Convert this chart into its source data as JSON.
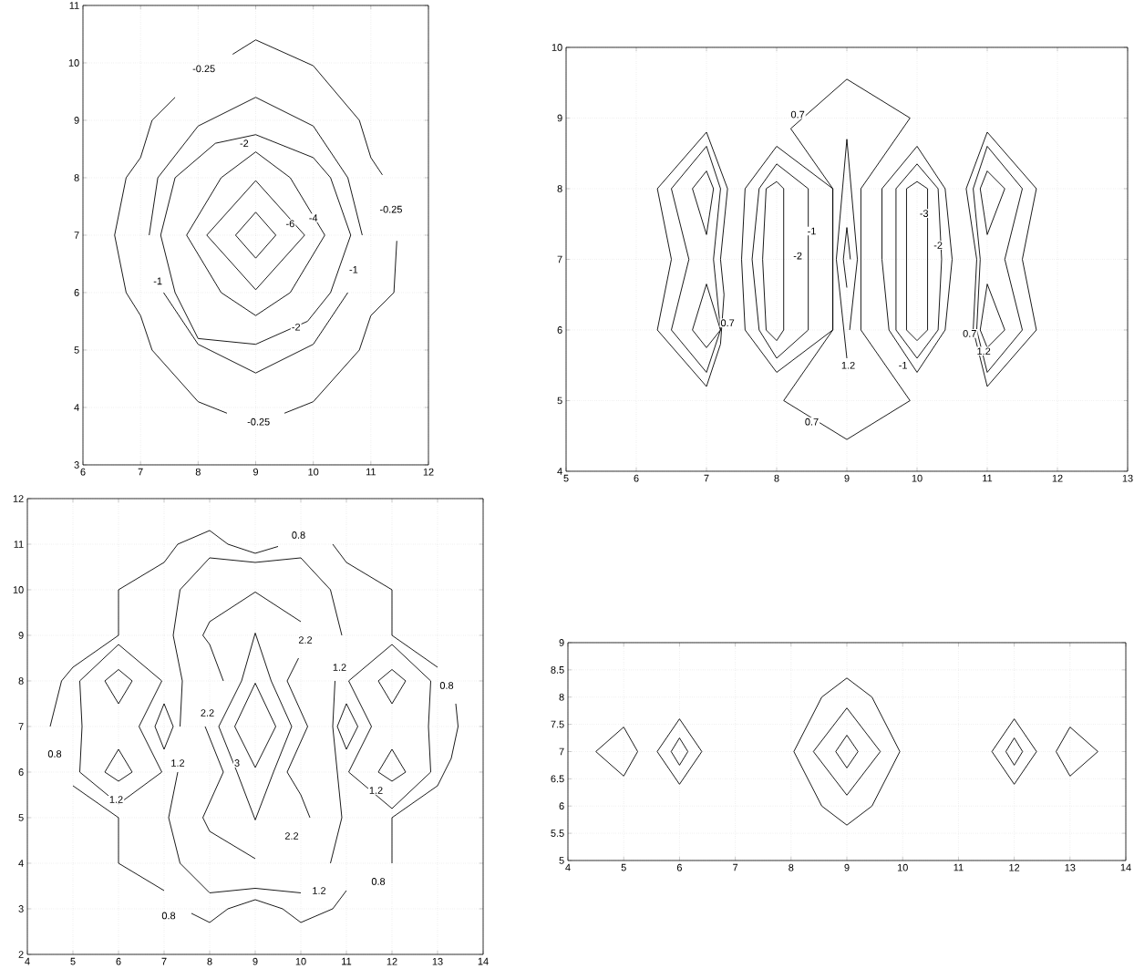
{
  "chart_data": [
    {
      "type": "line",
      "xlim": [
        6,
        12
      ],
      "ylim": [
        3,
        11
      ],
      "xticks": [
        6,
        7,
        8,
        9,
        10,
        11,
        12
      ],
      "yticks": [
        3,
        4,
        5,
        6,
        7,
        8,
        9,
        10,
        11
      ],
      "grid": true,
      "marker": "none",
      "line_style": "solid",
      "series": [
        {
          "color": "#000000",
          "x": [
            8.6,
            9,
            10,
            10.8,
            11,
            11.2
          ],
          "values": [
            10.15,
            10.4,
            9.95,
            9,
            8.35,
            8.05
          ]
        },
        {
          "color": "#000000",
          "x": [
            11.45,
            11.4,
            11,
            10.8,
            10,
            9.5
          ],
          "values": [
            6.9,
            6,
            5.6,
            5,
            4.1,
            3.9
          ]
        },
        {
          "color": "#000000",
          "x": [
            8.5,
            8,
            7.2,
            7,
            6.75,
            6.55,
            6.75,
            7,
            7.2,
            7.6
          ],
          "values": [
            3.9,
            4.1,
            5,
            5.6,
            6,
            7,
            8,
            8.35,
            9,
            9.4
          ]
        },
        {
          "color": "#000000",
          "x": [
            10.85,
            10.6,
            10,
            9,
            8,
            7.3,
            7.15
          ],
          "values": [
            7,
            8,
            8.9,
            9.4,
            8.9,
            8,
            7
          ]
        },
        {
          "color": "#000000",
          "x": [
            7.4,
            8,
            9,
            10,
            10.6
          ],
          "values": [
            6,
            5.1,
            4.6,
            5.1,
            6
          ]
        },
        {
          "color": "#000000",
          "x": [
            7.35,
            7.6,
            8.3,
            9,
            10,
            10.3,
            10.65
          ],
          "values": [
            7,
            8,
            8.6,
            8.75,
            8.35,
            8,
            7
          ]
        },
        {
          "color": "#000000",
          "x": [
            7.35,
            7.6,
            8,
            9,
            9.9,
            10.3,
            10.65
          ],
          "values": [
            7,
            6,
            5.2,
            5.1,
            5.5,
            6,
            7
          ]
        },
        {
          "color": "#000000",
          "x": [
            7.8,
            8.4,
            9,
            9.6,
            10.2
          ],
          "values": [
            7,
            8,
            8.45,
            8,
            7
          ]
        },
        {
          "color": "#000000",
          "x": [
            7.8,
            8.4,
            9,
            9.6,
            10.2
          ],
          "values": [
            7,
            6,
            5.6,
            6,
            7
          ]
        },
        {
          "color": "#000000",
          "x": [
            8.15,
            9,
            9.85
          ],
          "values": [
            7,
            7.95,
            7
          ]
        },
        {
          "color": "#000000",
          "x": [
            8.15,
            9,
            9.85
          ],
          "values": [
            7,
            6.05,
            7
          ]
        },
        {
          "color": "#000000",
          "x": [
            8.65,
            9,
            9.35
          ],
          "values": [
            7,
            7.4,
            7
          ]
        },
        {
          "color": "#000000",
          "x": [
            8.65,
            9,
            9.35
          ],
          "values": [
            7,
            6.6,
            7
          ]
        }
      ],
      "annotations": [
        {
          "text": "-0.25",
          "x": 8.1,
          "y": 9.9
        },
        {
          "text": "-0.25",
          "x": 11.35,
          "y": 7.45
        },
        {
          "text": "-0.25",
          "x": 9.05,
          "y": 3.75
        },
        {
          "text": "-1",
          "x": 7.3,
          "y": 6.2
        },
        {
          "text": "-1",
          "x": 10.7,
          "y": 6.4
        },
        {
          "text": "-2",
          "x": 8.8,
          "y": 8.6
        },
        {
          "text": "-2",
          "x": 9.7,
          "y": 5.4
        },
        {
          "text": "-6",
          "x": 9.6,
          "y": 7.2
        },
        {
          "text": "-4",
          "x": 10,
          "y": 7.3
        }
      ]
    },
    {
      "type": "line",
      "xlim": [
        5,
        13
      ],
      "ylim": [
        4,
        10
      ],
      "xticks": [
        5,
        6,
        7,
        8,
        9,
        10,
        11,
        12,
        13
      ],
      "yticks": [
        4,
        5,
        6,
        7,
        8,
        9,
        10
      ],
      "grid": true,
      "marker": "none",
      "line_style": "solid",
      "series": [
        {
          "color": "#000000",
          "x": [
            9,
            8.2,
            8.8,
            8.8,
            8.1,
            9
          ],
          "values": [
            9.55,
            8.85,
            8,
            6,
            5,
            4.45
          ]
        },
        {
          "color": "#000000",
          "x": [
            9,
            9.9,
            9.2,
            9.2,
            9.9,
            9
          ],
          "values": [
            9.55,
            9,
            8,
            6,
            5,
            4.45
          ]
        },
        {
          "color": "#000000",
          "x": [
            9.04,
            9.15,
            9,
            8.85,
            9
          ],
          "values": [
            6,
            7,
            8.7,
            7,
            5.6
          ]
        },
        {
          "color": "#000000",
          "x": [
            9.05,
            9,
            8.95,
            9
          ],
          "values": [
            7,
            7.45,
            7,
            6.6
          ]
        },
        {
          "color": "#000000",
          "x": [
            7,
            6.3,
            6.5,
            6.3,
            7
          ],
          "values": [
            8.8,
            8,
            7,
            6,
            5.2
          ]
        },
        {
          "color": "#000000",
          "x": [
            7,
            7.3,
            7.2,
            7.25,
            7.2,
            7
          ],
          "values": [
            8.8,
            8,
            7,
            6.5,
            5.8,
            5.2
          ]
        },
        {
          "color": "#000000",
          "x": [
            7,
            6.5,
            6.75,
            6.5,
            7
          ],
          "values": [
            8.6,
            8,
            7,
            6,
            5.4
          ]
        },
        {
          "color": "#000000",
          "x": [
            7,
            7.2,
            7.1,
            7.2,
            7
          ],
          "values": [
            8.6,
            8,
            7,
            6,
            5.4
          ]
        },
        {
          "color": "#000000",
          "x": [
            6.8,
            7,
            7.1
          ],
          "values": [
            8,
            8.25,
            8
          ]
        },
        {
          "color": "#000000",
          "x": [
            6.8,
            7,
            7.1
          ],
          "values": [
            8,
            7.35,
            8
          ]
        },
        {
          "color": "#000000",
          "x": [
            6.8,
            7,
            7.2
          ],
          "values": [
            6,
            6.65,
            6
          ]
        },
        {
          "color": "#000000",
          "x": [
            6.8,
            7,
            7.2
          ],
          "values": [
            6,
            5.75,
            6
          ]
        },
        {
          "color": "#000000",
          "x": [
            11,
            10.7,
            10.85,
            10.8,
            11
          ],
          "values": [
            8.8,
            8,
            7,
            6,
            5.2
          ]
        },
        {
          "color": "#000000",
          "x": [
            11,
            11.7,
            11.5,
            11.7,
            11
          ],
          "values": [
            8.8,
            8,
            7,
            6,
            5.2
          ]
        },
        {
          "color": "#000000",
          "x": [
            11,
            10.8,
            10.9,
            10.85,
            11
          ],
          "values": [
            8.6,
            8,
            7,
            6,
            5.4
          ]
        },
        {
          "color": "#000000",
          "x": [
            11,
            11.5,
            11.25,
            11.5,
            11
          ],
          "values": [
            8.6,
            8,
            7,
            6,
            5.4
          ]
        },
        {
          "color": "#000000",
          "x": [
            10.9,
            11,
            11.25
          ],
          "values": [
            8,
            8.25,
            8
          ]
        },
        {
          "color": "#000000",
          "x": [
            10.9,
            11,
            11.25
          ],
          "values": [
            8,
            7.35,
            8
          ]
        },
        {
          "color": "#000000",
          "x": [
            10.9,
            11,
            11.25
          ],
          "values": [
            6,
            6.65,
            6
          ]
        },
        {
          "color": "#000000",
          "x": [
            10.9,
            11,
            11.25
          ],
          "values": [
            6,
            5.75,
            6
          ]
        },
        {
          "color": "#000000",
          "x": [
            8,
            7.55,
            7.5,
            7.55,
            8
          ],
          "values": [
            8.6,
            8,
            7,
            6,
            5.4
          ]
        },
        {
          "color": "#000000",
          "x": [
            8,
            8.8,
            8.8,
            8
          ],
          "values": [
            8.6,
            8,
            6,
            5.4
          ]
        },
        {
          "color": "#000000",
          "x": [
            8,
            7.75,
            7.65,
            7.75,
            8
          ],
          "values": [
            8.35,
            8,
            7,
            6,
            5.6
          ]
        },
        {
          "color": "#000000",
          "x": [
            8,
            8.45,
            8.45,
            8
          ],
          "values": [
            8.35,
            8,
            6,
            5.6
          ]
        },
        {
          "color": "#000000",
          "x": [
            8,
            7.85,
            7.8,
            7.85,
            8
          ],
          "values": [
            8.1,
            8,
            7,
            6,
            5.85
          ]
        },
        {
          "color": "#000000",
          "x": [
            8,
            8.1,
            8.1,
            8
          ],
          "values": [
            8.1,
            8,
            6,
            5.85
          ]
        },
        {
          "color": "#000000",
          "x": [
            10,
            9.5,
            9.5,
            9.6,
            10
          ],
          "values": [
            8.6,
            8,
            7,
            6,
            5.4
          ]
        },
        {
          "color": "#000000",
          "x": [
            10,
            10.4,
            10.5,
            10.4,
            10
          ],
          "values": [
            8.6,
            8,
            7,
            6,
            5.4
          ]
        },
        {
          "color": "#000000",
          "x": [
            10,
            9.7,
            9.7,
            10
          ],
          "values": [
            8.35,
            8,
            6,
            5.6
          ]
        },
        {
          "color": "#000000",
          "x": [
            10,
            10.3,
            10.35,
            10.3,
            10
          ],
          "values": [
            8.35,
            8,
            7,
            6,
            5.6
          ]
        },
        {
          "color": "#000000",
          "x": [
            10,
            9.85,
            9.85,
            9.85,
            10
          ],
          "values": [
            8.1,
            8,
            7,
            6,
            5.85
          ]
        },
        {
          "color": "#000000",
          "x": [
            10,
            10.15,
            10.15,
            10
          ],
          "values": [
            8.1,
            8,
            6,
            5.85
          ]
        }
      ],
      "annotations": [
        {
          "text": "0.7",
          "x": 8.3,
          "y": 9.05
        },
        {
          "text": "0.7",
          "x": 8.5,
          "y": 4.7
        },
        {
          "text": "0.7",
          "x": 7.3,
          "y": 6.1
        },
        {
          "text": "0.7",
          "x": 10.75,
          "y": 5.95
        },
        {
          "text": "1.2",
          "x": 10.95,
          "y": 5.7
        },
        {
          "text": "1.2",
          "x": 9.02,
          "y": 5.5
        },
        {
          "text": "-1",
          "x": 8.5,
          "y": 7.4
        },
        {
          "text": "-2",
          "x": 8.3,
          "y": 7.05
        },
        {
          "text": "-3",
          "x": 10.1,
          "y": 7.65
        },
        {
          "text": "-2",
          "x": 10.3,
          "y": 7.2
        },
        {
          "text": "-1",
          "x": 9.8,
          "y": 5.5
        }
      ]
    },
    {
      "type": "line",
      "xlim": [
        4,
        14
      ],
      "ylim": [
        2,
        12
      ],
      "xticks": [
        4,
        5,
        6,
        7,
        8,
        9,
        10,
        11,
        12,
        13,
        14
      ],
      "yticks": [
        2,
        3,
        4,
        5,
        6,
        7,
        8,
        9,
        10,
        11,
        12
      ],
      "grid": true,
      "marker": "none",
      "line_style": "solid",
      "series": [
        {
          "color": "#000000",
          "x": [
            4.5,
            4.75,
            5,
            6,
            6,
            7,
            7.3,
            8,
            8.4,
            9,
            9.5
          ],
          "values": [
            7,
            8,
            8.3,
            9,
            10,
            10.6,
            11,
            11.3,
            11,
            10.8,
            10.95
          ]
        },
        {
          "color": "#000000",
          "x": [
            10.7,
            11,
            12,
            12,
            13
          ],
          "values": [
            11,
            10.6,
            10,
            9,
            8.3
          ]
        },
        {
          "color": "#000000",
          "x": [
            13.4,
            13.45,
            13.3,
            13,
            12,
            12
          ],
          "values": [
            7.5,
            7,
            6.3,
            5.7,
            5,
            4
          ]
        },
        {
          "color": "#000000",
          "x": [
            11,
            10.7,
            10,
            9.6,
            9,
            8.4,
            8,
            7.6
          ],
          "values": [
            3.4,
            3,
            2.7,
            3,
            3.2,
            3,
            2.7,
            2.9
          ]
        },
        {
          "color": "#000000",
          "x": [
            7,
            6,
            6,
            5
          ],
          "values": [
            3.4,
            4,
            5,
            5.7
          ]
        },
        {
          "color": "#000000",
          "x": [
            7.35,
            7.4,
            7.2,
            7.35,
            8,
            9,
            10,
            10.65,
            10.9
          ],
          "values": [
            7,
            8,
            9,
            10,
            10.7,
            10.6,
            10.7,
            10,
            9
          ]
        },
        {
          "color": "#000000",
          "x": [
            10.75,
            10.7,
            10.8,
            10.9,
            10.65
          ],
          "values": [
            8,
            7,
            6,
            5,
            4
          ]
        },
        {
          "color": "#000000",
          "x": [
            10,
            9,
            8,
            7.35,
            7.1,
            7.3
          ],
          "values": [
            3.35,
            3.45,
            3.35,
            4,
            5,
            6
          ]
        },
        {
          "color": "#000000",
          "x": [
            8.3,
            8,
            7.85,
            8,
            9,
            10
          ],
          "values": [
            8,
            8.8,
            9,
            9.3,
            9.95,
            9.3
          ]
        },
        {
          "color": "#000000",
          "x": [
            9.95,
            9.7,
            10.15,
            9.7,
            10,
            10.2
          ],
          "values": [
            8.5,
            8,
            7,
            6,
            5.5,
            5
          ]
        },
        {
          "color": "#000000",
          "x": [
            7.9,
            8.3,
            7.85,
            8,
            9
          ],
          "values": [
            7,
            6,
            5,
            4.7,
            4.1
          ]
        },
        {
          "color": "#000000",
          "x": [
            8.2,
            8.7,
            9,
            9.35,
            9.8
          ],
          "values": [
            7,
            8,
            9.05,
            8,
            7
          ]
        },
        {
          "color": "#000000",
          "x": [
            8.2,
            8.6,
            9,
            9.4,
            9.8
          ],
          "values": [
            7,
            6,
            4.95,
            6,
            7
          ]
        },
        {
          "color": "#000000",
          "x": [
            8.55,
            9,
            9.45
          ],
          "values": [
            7,
            7.95,
            7
          ]
        },
        {
          "color": "#000000",
          "x": [
            8.55,
            9,
            9.45
          ],
          "values": [
            7,
            6.1,
            7
          ]
        },
        {
          "color": "#000000",
          "x": [
            6,
            5.15,
            5.2,
            5.15,
            6
          ],
          "values": [
            8.8,
            8,
            7,
            6,
            5.3
          ]
        },
        {
          "color": "#000000",
          "x": [
            6,
            6.95,
            6.45,
            6.95,
            6
          ],
          "values": [
            8.8,
            8,
            7,
            6,
            5.3
          ]
        },
        {
          "color": "#000000",
          "x": [
            5.7,
            6,
            6.3
          ],
          "values": [
            8,
            8.25,
            8
          ]
        },
        {
          "color": "#000000",
          "x": [
            5.7,
            6,
            6.3
          ],
          "values": [
            8,
            7.5,
            8
          ]
        },
        {
          "color": "#000000",
          "x": [
            5.7,
            6,
            6.3
          ],
          "values": [
            6,
            6.5,
            6
          ]
        },
        {
          "color": "#000000",
          "x": [
            5.7,
            6,
            6.3
          ],
          "values": [
            6,
            5.8,
            6
          ]
        },
        {
          "color": "#000000",
          "x": [
            6.8,
            7,
            7.2
          ],
          "values": [
            7,
            7.5,
            7
          ]
        },
        {
          "color": "#000000",
          "x": [
            6.8,
            7,
            7.2
          ],
          "values": [
            7,
            6.5,
            7
          ]
        },
        {
          "color": "#000000",
          "x": [
            12,
            11.05,
            11.55,
            11.05,
            12
          ],
          "values": [
            8.8,
            8,
            7,
            6,
            5.2
          ]
        },
        {
          "color": "#000000",
          "x": [
            12,
            12.85,
            12.8,
            12.85,
            12
          ],
          "values": [
            8.8,
            8,
            7,
            6,
            5.2
          ]
        },
        {
          "color": "#000000",
          "x": [
            11.7,
            12,
            12.3
          ],
          "values": [
            8,
            8.25,
            8
          ]
        },
        {
          "color": "#000000",
          "x": [
            11.7,
            12,
            12.3
          ],
          "values": [
            8,
            7.5,
            8
          ]
        },
        {
          "color": "#000000",
          "x": [
            11.7,
            12,
            12.3
          ],
          "values": [
            6,
            6.5,
            6
          ]
        },
        {
          "color": "#000000",
          "x": [
            11.7,
            12,
            12.3
          ],
          "values": [
            6,
            5.8,
            6
          ]
        },
        {
          "color": "#000000",
          "x": [
            10.8,
            11,
            11.25
          ],
          "values": [
            7,
            7.5,
            7
          ]
        },
        {
          "color": "#000000",
          "x": [
            10.8,
            11,
            11.25
          ],
          "values": [
            7,
            6.5,
            7
          ]
        }
      ],
      "annotations": [
        {
          "text": "0.8",
          "x": 9.95,
          "y": 11.2
        },
        {
          "text": "0.8",
          "x": 13.2,
          "y": 7.9
        },
        {
          "text": "0.8",
          "x": 4.6,
          "y": 6.4
        },
        {
          "text": "0.8",
          "x": 11.7,
          "y": 3.6
        },
        {
          "text": "0.8",
          "x": 7.1,
          "y": 2.85
        },
        {
          "text": "1.2",
          "x": 10.85,
          "y": 8.3
        },
        {
          "text": "1.2",
          "x": 5.95,
          "y": 5.4
        },
        {
          "text": "1.2",
          "x": 7.3,
          "y": 6.2
        },
        {
          "text": "1.2",
          "x": 11.65,
          "y": 5.6
        },
        {
          "text": "1.2",
          "x": 10.4,
          "y": 3.4
        },
        {
          "text": "2.2",
          "x": 10.1,
          "y": 8.9
        },
        {
          "text": "2.2",
          "x": 7.95,
          "y": 7.3
        },
        {
          "text": "2.2",
          "x": 9.8,
          "y": 4.6
        },
        {
          "text": "3",
          "x": 8.6,
          "y": 6.2
        }
      ]
    },
    {
      "type": "line",
      "xlim": [
        4,
        14
      ],
      "ylim": [
        5,
        9
      ],
      "xticks": [
        4,
        5,
        6,
        7,
        8,
        9,
        10,
        11,
        12,
        13,
        14
      ],
      "yticks": [
        5,
        5.5,
        6,
        6.5,
        7,
        7.5,
        8,
        8.5,
        9
      ],
      "grid": true,
      "marker": "none",
      "line_style": "solid",
      "series": [
        {
          "color": "#000000",
          "x": [
            4.5,
            5,
            5.25
          ],
          "values": [
            7,
            7.45,
            7
          ]
        },
        {
          "color": "#000000",
          "x": [
            4.5,
            5,
            5.25
          ],
          "values": [
            7,
            6.55,
            7
          ]
        },
        {
          "color": "#000000",
          "x": [
            5.6,
            6,
            6.4
          ],
          "values": [
            7,
            7.6,
            7
          ]
        },
        {
          "color": "#000000",
          "x": [
            5.6,
            6,
            6.4
          ],
          "values": [
            7,
            6.4,
            7
          ]
        },
        {
          "color": "#000000",
          "x": [
            5.85,
            6,
            6.15
          ],
          "values": [
            7,
            7.25,
            7
          ]
        },
        {
          "color": "#000000",
          "x": [
            5.85,
            6,
            6.15
          ],
          "values": [
            7,
            6.75,
            7
          ]
        },
        {
          "color": "#000000",
          "x": [
            8.05,
            8.55,
            9,
            9.45,
            9.95
          ],
          "values": [
            7,
            8,
            8.35,
            8,
            7
          ]
        },
        {
          "color": "#000000",
          "x": [
            8.05,
            8.55,
            9,
            9.45,
            9.95
          ],
          "values": [
            7,
            6,
            5.65,
            6,
            7
          ]
        },
        {
          "color": "#000000",
          "x": [
            8.4,
            9,
            9.6
          ],
          "values": [
            7,
            7.8,
            7
          ]
        },
        {
          "color": "#000000",
          "x": [
            8.4,
            9,
            9.6
          ],
          "values": [
            7,
            6.2,
            7
          ]
        },
        {
          "color": "#000000",
          "x": [
            8.8,
            9,
            9.2
          ],
          "values": [
            7,
            7.3,
            7
          ]
        },
        {
          "color": "#000000",
          "x": [
            8.8,
            9,
            9.2
          ],
          "values": [
            7,
            6.7,
            7
          ]
        },
        {
          "color": "#000000",
          "x": [
            11.6,
            12,
            12.4
          ],
          "values": [
            7,
            7.6,
            7
          ]
        },
        {
          "color": "#000000",
          "x": [
            11.6,
            12,
            12.4
          ],
          "values": [
            7,
            6.4,
            7
          ]
        },
        {
          "color": "#000000",
          "x": [
            11.85,
            12,
            12.15
          ],
          "values": [
            7,
            7.25,
            7
          ]
        },
        {
          "color": "#000000",
          "x": [
            11.85,
            12,
            12.15
          ],
          "values": [
            7,
            6.75,
            7
          ]
        },
        {
          "color": "#000000",
          "x": [
            12.75,
            13,
            13.5
          ],
          "values": [
            7,
            7.45,
            7
          ]
        },
        {
          "color": "#000000",
          "x": [
            12.75,
            13,
            13.5
          ],
          "values": [
            7,
            6.55,
            7
          ]
        }
      ]
    }
  ]
}
